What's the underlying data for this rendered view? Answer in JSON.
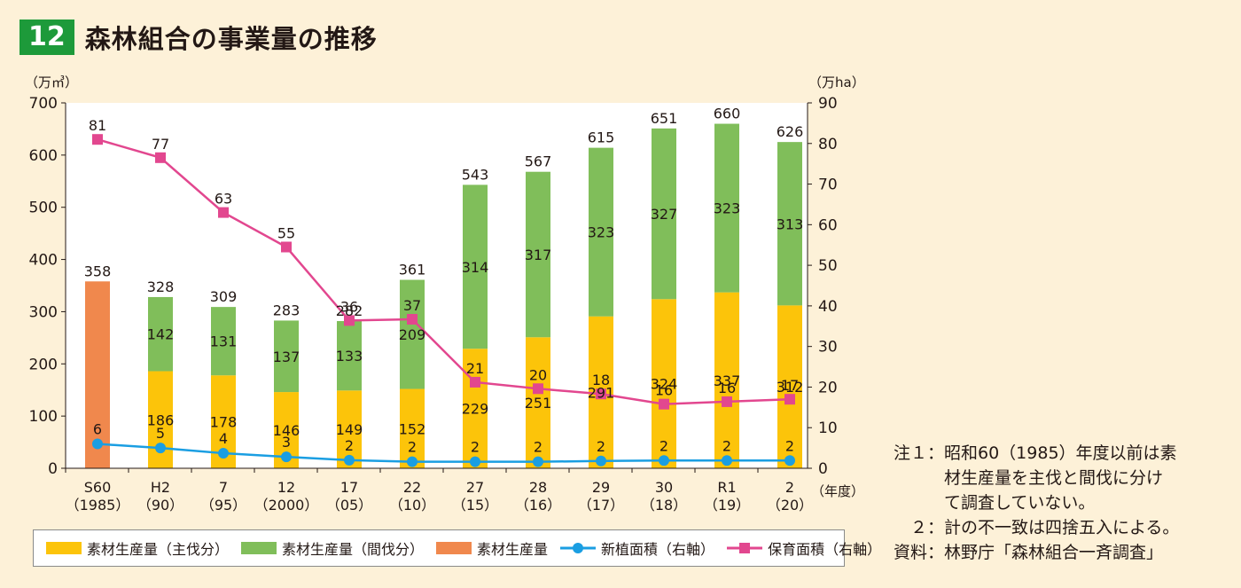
{
  "header": {
    "figure_number": "12",
    "title": "森林組合の事業量の推移"
  },
  "colors": {
    "main": "#fcc40a",
    "thin": "#80be5a",
    "total": "#f0884d",
    "shinshoku": "#1a9ee2",
    "hoiku": "#e2478f"
  },
  "chart_data": {
    "type": "bar",
    "title": "森林組合の事業量の推移",
    "left_axis_unit": "（万㎥）",
    "right_axis_unit": "（万ha）",
    "x_unit": "（年度）",
    "ylim_left": [
      0,
      700
    ],
    "ylim_right": [
      0,
      90
    ],
    "left_ticks": [
      "0",
      "100",
      "200",
      "300",
      "400",
      "500",
      "600",
      "700"
    ],
    "right_ticks": [
      "0",
      "10",
      "20",
      "30",
      "40",
      "50",
      "60",
      "70",
      "80",
      "90"
    ],
    "categories": [
      [
        "S60",
        "（1985）"
      ],
      [
        "H2",
        "（90）"
      ],
      [
        "7",
        "（95）"
      ],
      [
        "12",
        "（2000）"
      ],
      [
        "17",
        "（05）"
      ],
      [
        "22",
        "（10）"
      ],
      [
        "27",
        "（15）"
      ],
      [
        "28",
        "（16）"
      ],
      [
        "29",
        "（17）"
      ],
      [
        "30",
        "（18）"
      ],
      [
        "R1",
        "（19）"
      ],
      [
        "2",
        "（20）"
      ]
    ],
    "series": [
      {
        "name": "素材生産量（主伐分）",
        "type": "bar",
        "axis": "left",
        "values": [
          null,
          186,
          178,
          146,
          149,
          152,
          229,
          251,
          291,
          324,
          337,
          312
        ]
      },
      {
        "name": "素材生産量（間伐分）",
        "type": "bar",
        "axis": "left",
        "values": [
          null,
          142,
          131,
          137,
          133,
          209,
          314,
          317,
          323,
          327,
          323,
          313
        ]
      },
      {
        "name": "素材生産量",
        "type": "bar",
        "axis": "left",
        "values": [
          358,
          null,
          null,
          null,
          null,
          null,
          null,
          null,
          null,
          null,
          null,
          null
        ]
      },
      {
        "name": "新植面積（右軸）",
        "type": "line",
        "axis": "right",
        "values": [
          6,
          5,
          4,
          3,
          2,
          2,
          2,
          2,
          2,
          2,
          2,
          2
        ],
        "plot_values": [
          6,
          5,
          3.7,
          2.8,
          2,
          1.6,
          1.6,
          1.6,
          1.8,
          1.9,
          1.9,
          1.9
        ]
      },
      {
        "name": "保育面積（右軸）",
        "type": "line",
        "axis": "right",
        "values": [
          81,
          77,
          63,
          55,
          36,
          37,
          21,
          20,
          18,
          16,
          16,
          17
        ],
        "plot_values": [
          81,
          76.5,
          63,
          54.5,
          36.4,
          36.7,
          21.2,
          19.6,
          18.3,
          15.8,
          16.4,
          17
        ]
      }
    ],
    "totals": [
      "358",
      "328",
      "309",
      "283",
      "282",
      "361",
      "543",
      "567",
      "615",
      "651",
      "660",
      "626"
    ]
  },
  "notes": [
    "注１：昭和60（1985）年度以前は素",
    "　　　材生産量を主伐と間伐に分け",
    "　　　て調査していない。",
    "　２：計の不一致は四捨五入による。",
    "資料：林野庁「森林組合一斉調査」"
  ]
}
